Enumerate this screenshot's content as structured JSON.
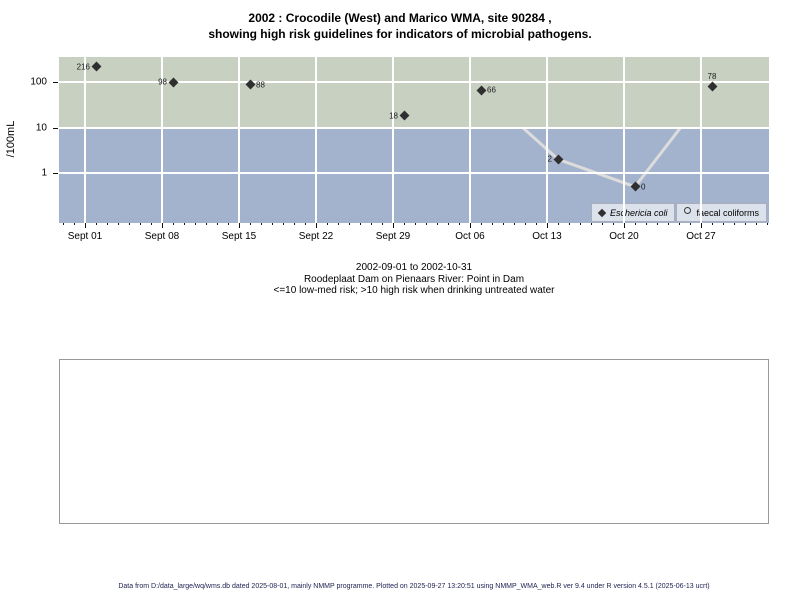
{
  "title": {
    "line1": "2002 : Crocodile (West) and Marico WMA, site 90284 ,",
    "line2": "showing high risk guidelines for indicators of microbial pathogens."
  },
  "caption": {
    "line1": "2002-09-01 to 2002-10-31",
    "line2": "Roodeplaat Dam on Pienaars River: Point in Dam",
    "line3": "<=10 low-med risk; >10 high risk when drinking untreated water"
  },
  "footer": {
    "text": "Data from D:/data_large/wq/wms.db dated 2025-08-01, mainly NMMP programme. Plotted on 2025-09-27 13:20:51 using NMMP_WMA_web.R ver 9.4 under R version 4.5.1 (2025-06-13 ucrt)"
  },
  "chart_data": {
    "type": "line",
    "title": "2002 : Crocodile (West) and Marico WMA, site 90284, showing high risk guidelines for indicators of microbial pathogens.",
    "xlabel": "",
    "ylabel": "/100mL",
    "y_scale": "log",
    "ylim": [
      0.08,
      350
    ],
    "y_ticks": [
      {
        "label": "100",
        "value": 100
      },
      {
        "label": "10",
        "value": 10
      },
      {
        "label": "1",
        "value": 1
      }
    ],
    "x_ticks": [
      {
        "label": "Sept 01",
        "day": 0
      },
      {
        "label": "Sept 08",
        "day": 7
      },
      {
        "label": "Sept 15",
        "day": 14
      },
      {
        "label": "Sept 22",
        "day": 21
      },
      {
        "label": "Sept 29",
        "day": 28
      },
      {
        "label": "Oct 06",
        "day": 35
      },
      {
        "label": "Oct 13",
        "day": 42
      },
      {
        "label": "Oct 20",
        "day": 49
      },
      {
        "label": "Oct 27",
        "day": 56
      }
    ],
    "x_minor_ticks": {
      "from_day": -2,
      "to_day": 62,
      "step": 1
    },
    "risk": {
      "threshold": 10,
      "high_risk_color": "#c8d1c1",
      "low_med_color": "#a3b2cd",
      "note": "<=10 low-med risk; >10 high risk when drinking untreated water"
    },
    "grid_color": "#ffffff",
    "series": [
      {
        "name": "Eschericia coli",
        "marker": "filled-diamond",
        "marker_color": "#2f2f2f",
        "line_color": "#dcdcdc",
        "zero_plotted_at": 0.5,
        "points": [
          {
            "date": "2002-09-02",
            "day": 1,
            "value": 216,
            "label": "216",
            "label_side": "left"
          },
          {
            "date": "2002-09-09",
            "day": 8,
            "value": 98,
            "label": "98",
            "label_side": "left"
          },
          {
            "date": "2002-09-16",
            "day": 15,
            "value": 88,
            "label": "88",
            "label_side": "right"
          },
          {
            "date": "2002-09-30",
            "day": 29,
            "value": 18,
            "label": "18",
            "label_side": "left"
          },
          {
            "date": "2002-10-07",
            "day": 36,
            "value": 66,
            "label": "66",
            "label_side": "right"
          },
          {
            "date": "2002-10-14",
            "day": 43,
            "value": 2,
            "label": "2",
            "label_side": "left"
          },
          {
            "date": "2002-10-21",
            "day": 50,
            "value": 0,
            "label": "0",
            "label_side": "right"
          },
          {
            "date": "2002-10-28",
            "day": 57,
            "value": 78,
            "label": "78",
            "label_side": "above"
          }
        ]
      },
      {
        "name": "faecal coliforms",
        "marker": "open-circle",
        "marker_color": "#3a3a3a",
        "points": []
      }
    ],
    "legend": {
      "position": "bottom-right"
    }
  }
}
